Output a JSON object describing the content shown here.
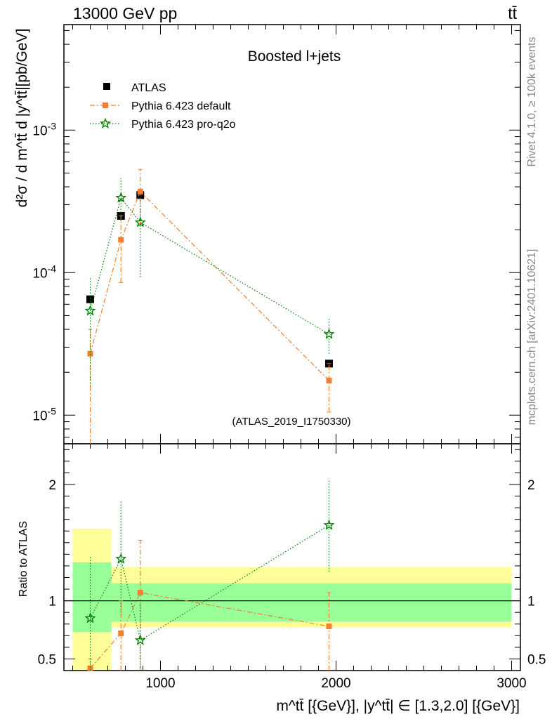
{
  "header": {
    "energy_label": "13000 GeV pp",
    "process_label": "tt̄"
  },
  "side_notes": {
    "rivet": "Rivet 4.1.0, ≥ 100k events",
    "mcplots": "mcplots.cern.ch [arXiv:2401.10621]"
  },
  "chart_data": {
    "type": "scatter",
    "title": "Boosted l+jets",
    "watermark": "(ATLAS_2019_I1750330)",
    "ylabel": "d²σ / d m^tt̄ d |y^tt̄|[pb/GeV]",
    "ratio_ylabel": "Ratio to ATLAS",
    "xlabel": "m^tt̄ [{GeV}], |y^tt̄| ∈ [1.3,2.0] [{GeV}]",
    "xlim": [
      450,
      3050
    ],
    "ylim": [
      6.3e-06,
      0.0055
    ],
    "ratio_ylim": [
      0.4,
      2.35
    ],
    "x_ticks": [
      1000,
      2000,
      3000
    ],
    "x_tick_labels": [
      "1000",
      "2000",
      "3000"
    ],
    "y_ticks": [
      1e-05,
      0.0001,
      0.001
    ],
    "y_tick_labels": [
      "10^-5",
      "10^-4",
      "10^-3"
    ],
    "ratio_ticks": [
      0.5,
      1,
      2
    ],
    "ratio_tick_labels": [
      "0.5",
      "1",
      "2"
    ],
    "bins": [
      {
        "low": 500,
        "high": 720
      },
      {
        "low": 720,
        "high": 830
      },
      {
        "low": 830,
        "high": 950
      },
      {
        "low": 950,
        "high": 3000
      }
    ],
    "legend_position": "top-left",
    "series": [
      {
        "name": "ATLAS",
        "marker": "square",
        "color": "#000000",
        "x": [
          600,
          775,
          885,
          1960
        ],
        "y": [
          6.5e-05,
          0.00025,
          0.00035,
          2.3e-05
        ],
        "yerr_low": [
          6.2e-05,
          0.000235,
          0.00033,
          2.2e-05
        ],
        "yerr_high": [
          6.8e-05,
          0.000265,
          0.00037,
          2.4e-05
        ],
        "ratio": [
          1,
          1,
          1,
          1
        ],
        "ratio_band_inner": [
          [
            0.73,
            1.33
          ],
          [
            0.82,
            1.15
          ],
          [
            0.82,
            1.15
          ],
          [
            0.82,
            1.15
          ]
        ],
        "ratio_band_outer": [
          [
            0.4,
            1.62
          ],
          [
            0.77,
            1.29
          ],
          [
            0.77,
            1.29
          ],
          [
            0.77,
            1.29
          ]
        ]
      },
      {
        "name": "Pythia 6.423 default",
        "marker": "square",
        "color": "#f07f31",
        "linestyle": "dashdot",
        "x": [
          600,
          775,
          885,
          1960
        ],
        "y": [
          2.7e-05,
          0.00017,
          0.00037,
          1.75e-05
        ],
        "yerr_low": [
          5e-06,
          8.5e-05,
          0.00022,
          1.05e-05
        ],
        "yerr_high": [
          4e-05,
          0.00025,
          0.00053,
          2.3e-05
        ],
        "ratio": [
          0.42,
          0.72,
          1.07,
          0.78
        ],
        "ratio_err_low": [
          0.4,
          0.4,
          0.4,
          0.4
        ],
        "ratio_err_high": [
          0.5,
          1.0,
          1.52,
          1.07
        ]
      },
      {
        "name": "Pythia 6.423 pro-q2o",
        "marker": "star",
        "color": "#008000",
        "linestyle": "dotted",
        "x": [
          600,
          775,
          885,
          1960
        ],
        "y": [
          5.4e-05,
          0.000335,
          0.000225,
          3.7e-05
        ],
        "yerr_low": [
          1.6e-05,
          0.00023,
          9.3e-05,
          2.7e-05
        ],
        "yerr_high": [
          9.2e-05,
          0.00046,
          0.00036,
          4.8e-05
        ],
        "ratio": [
          0.85,
          1.36,
          0.66,
          1.65
        ],
        "ratio_err_low": [
          0.4,
          0.9,
          0.4,
          1.25
        ],
        "ratio_err_high": [
          1.38,
          1.86,
          0.98,
          2.05
        ]
      }
    ]
  }
}
